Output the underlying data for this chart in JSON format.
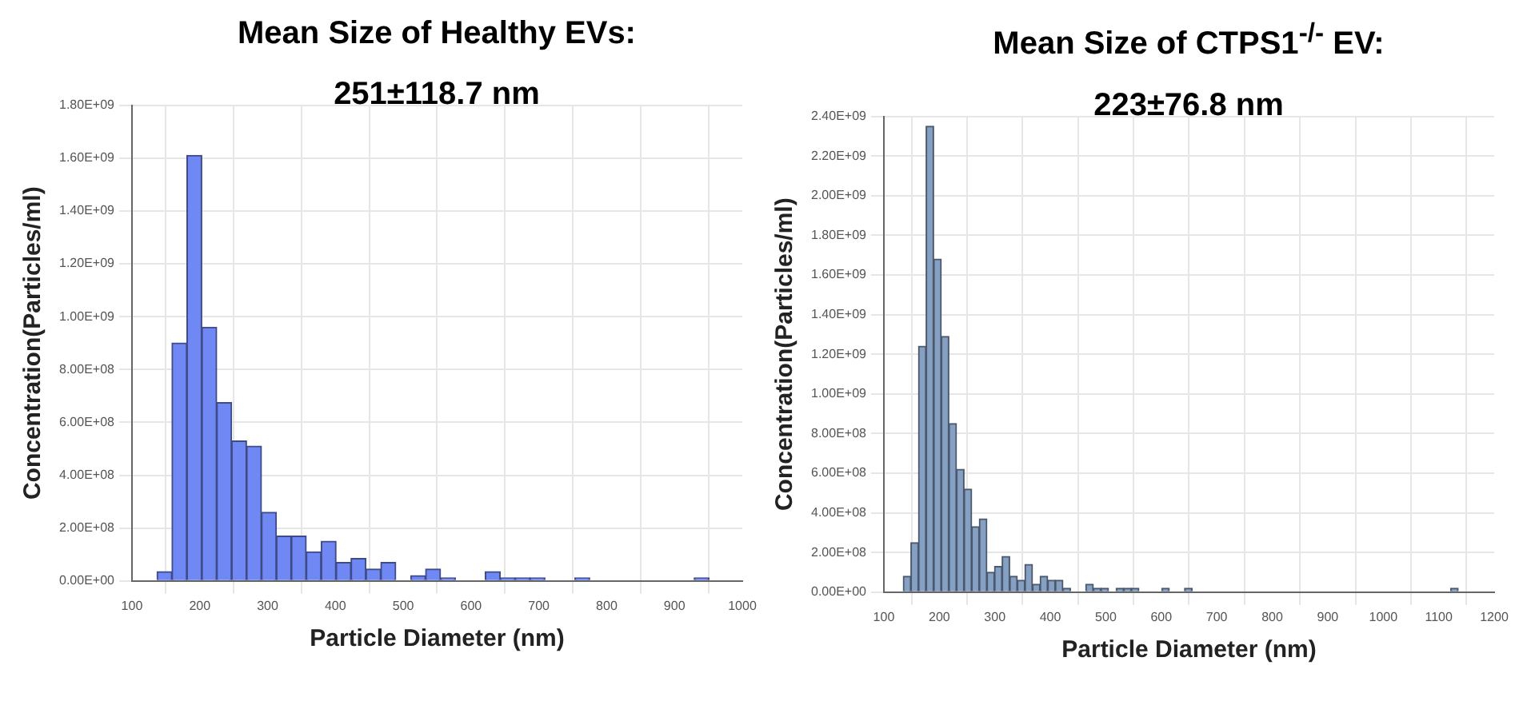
{
  "chart_data": [
    {
      "type": "histogram",
      "title": "Mean Size of Healthy EVs:",
      "subtitle": "251±118.7 nm",
      "xlabel": "Particle Diameter (nm)",
      "ylabel": "Concentration(Particles/ml)",
      "color": "#7088f4",
      "grid": true,
      "legend": false,
      "bins": [
        137,
        159,
        181,
        203,
        225,
        247,
        269,
        291,
        313,
        335,
        357,
        379,
        401,
        423,
        445,
        467,
        489,
        511,
        533,
        555,
        577,
        599,
        621,
        643,
        665,
        687,
        709,
        731,
        753,
        775,
        797,
        819,
        841,
        863,
        885,
        907,
        929,
        951
      ],
      "values": [
        35000000,
        900000000,
        1610000000,
        960000000,
        675000000,
        530000000,
        510000000,
        260000000,
        170000000,
        170000000,
        110000000,
        150000000,
        70000000,
        85000000,
        45000000,
        70000000,
        0,
        20000000,
        45000000,
        12000000,
        0,
        0,
        35000000,
        12000000,
        12000000,
        12000000,
        0,
        0,
        12000000,
        0,
        0,
        0,
        0,
        0,
        0,
        0,
        12000000
      ],
      "xlim": [
        100,
        1000
      ],
      "xticks": [
        100,
        200,
        300,
        400,
        500,
        600,
        700,
        800,
        900,
        1000
      ],
      "ylim": [
        0,
        1800000000
      ],
      "yticks": [
        {
          "value": 0,
          "label": "0.00E+00"
        },
        {
          "value": 200000000,
          "label": "2.00E+08"
        },
        {
          "value": 400000000,
          "label": "4.00E+08"
        },
        {
          "value": 600000000,
          "label": "6.00E+08"
        },
        {
          "value": 800000000,
          "label": "8.00E+08"
        },
        {
          "value": 1000000000,
          "label": "1.00E+09"
        },
        {
          "value": 1200000000,
          "label": "1.20E+09"
        },
        {
          "value": 1400000000,
          "label": "1.40E+09"
        },
        {
          "value": 1600000000,
          "label": "1.60E+09"
        },
        {
          "value": 1800000000,
          "label": "1.80E+09"
        }
      ]
    },
    {
      "type": "histogram",
      "title": "Mean Size of CTPS1$^{-/-}$ EV:",
      "subtitle": "223±76.8 nm",
      "xlabel": "Particle Diameter (nm)",
      "ylabel": "Concentration(Particles/ml)",
      "color": "#86a0c4",
      "grid": true,
      "legend": false,
      "bins": [
        135,
        148.7,
        162.4,
        176.1,
        189.8,
        203.5,
        217.2,
        230.9,
        244.6,
        258.3,
        272,
        285.7,
        299.4,
        313.1,
        326.8,
        340.5,
        354.2,
        367.9,
        381.6,
        395.3,
        409,
        422.7,
        436.4,
        450.1,
        463.8,
        477.5,
        491.2,
        504.9,
        518.6,
        532.3,
        546,
        559.7,
        573.4,
        587.1,
        600.8,
        614.5,
        628.2,
        641.9,
        655.6,
        669.3,
        683,
        696.7,
        710.4,
        724.1,
        737.8,
        751.5,
        765.2,
        778.9,
        792.6,
        806.3,
        820,
        833.7,
        847.4,
        861.1,
        874.8,
        888.5,
        902.2,
        915.9,
        929.6,
        943.3,
        957,
        970.7,
        984.4,
        998.1,
        1011.8,
        1025.5,
        1039.2,
        1052.9,
        1066.6,
        1080.3,
        1094,
        1107.7,
        1121.4,
        1135.1
      ],
      "values": [
        80000000,
        250000000,
        1240000000,
        2350000000,
        1680000000,
        1290000000,
        850000000,
        620000000,
        520000000,
        330000000,
        370000000,
        100000000,
        130000000,
        180000000,
        80000000,
        60000000,
        140000000,
        40000000,
        80000000,
        60000000,
        60000000,
        20000000,
        0,
        0,
        40000000,
        20000000,
        20000000,
        0,
        20000000,
        20000000,
        20000000,
        0,
        0,
        0,
        20000000,
        0,
        0,
        20000000,
        0,
        0,
        0,
        0,
        0,
        0,
        0,
        0,
        0,
        0,
        0,
        0,
        0,
        0,
        0,
        0,
        0,
        0,
        0,
        0,
        0,
        0,
        0,
        0,
        0,
        0,
        0,
        0,
        0,
        0,
        0,
        0,
        0,
        0,
        20000000
      ],
      "xlim": [
        100,
        1200
      ],
      "xticks": [
        100,
        200,
        300,
        400,
        500,
        600,
        700,
        800,
        900,
        1000,
        1100,
        1200
      ],
      "ylim": [
        0,
        2400000000
      ],
      "yticks": [
        {
          "value": 0,
          "label": "0.00E+00"
        },
        {
          "value": 200000000,
          "label": "2.00E+08"
        },
        {
          "value": 400000000,
          "label": "4.00E+08"
        },
        {
          "value": 600000000,
          "label": "6.00E+08"
        },
        {
          "value": 800000000,
          "label": "8.00E+08"
        },
        {
          "value": 1000000000,
          "label": "1.00E+09"
        },
        {
          "value": 1200000000,
          "label": "1.20E+09"
        },
        {
          "value": 1400000000,
          "label": "1.40E+09"
        },
        {
          "value": 1600000000,
          "label": "1.60E+09"
        },
        {
          "value": 1800000000,
          "label": "1.80E+09"
        },
        {
          "value": 2000000000,
          "label": "2.00E+09"
        },
        {
          "value": 2200000000,
          "label": "2.20E+09"
        },
        {
          "value": 2400000000,
          "label": "2.40E+09"
        }
      ]
    }
  ]
}
